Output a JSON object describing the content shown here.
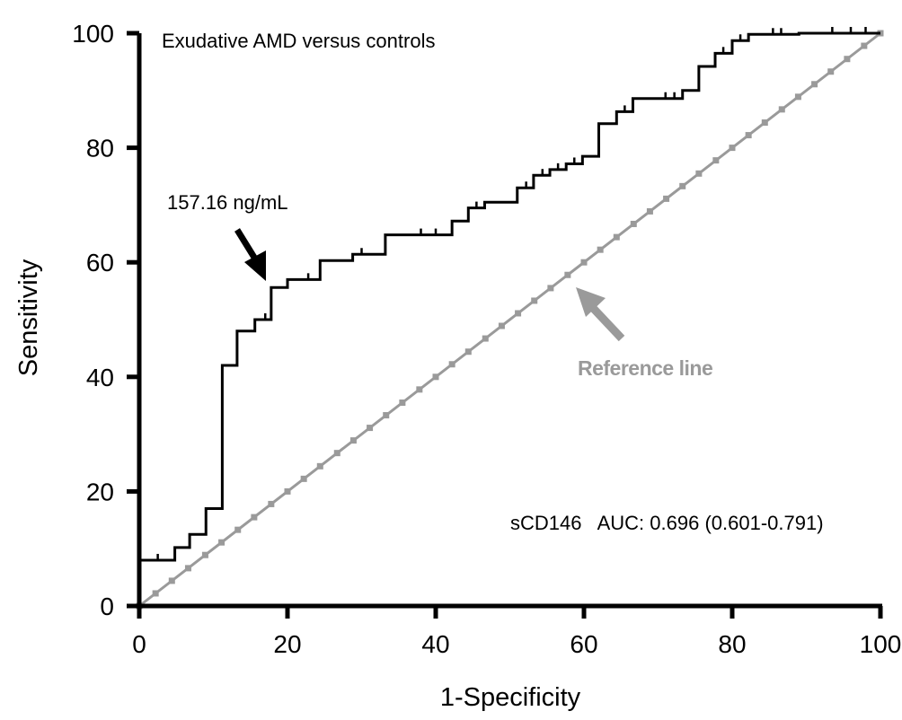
{
  "chart_data": {
    "type": "line",
    "title": "Exudative AMD versus controls",
    "xlabel": "1-Specificity",
    "ylabel": "Sensitivity",
    "xlim": [
      0,
      100
    ],
    "ylim": [
      0,
      100
    ],
    "xticks": [
      "0",
      "20",
      "40",
      "60",
      "80",
      "100"
    ],
    "yticks": [
      "0",
      "20",
      "40",
      "60",
      "80",
      "100"
    ],
    "grid": false,
    "colors": {
      "roc": "#000000",
      "reference": "#9a9a9a"
    },
    "series": [
      {
        "name": "sCD146",
        "step": true,
        "x": [
          0,
          0,
          4.8,
          4.8,
          6.8,
          6.8,
          9.0,
          9.0,
          11.2,
          11.2,
          13.2,
          13.2,
          15.6,
          15.6,
          17.8,
          17.8,
          20.0,
          20.0,
          24.4,
          24.4,
          28.8,
          28.8,
          33.2,
          33.2,
          42.2,
          42.2,
          44.4,
          44.4,
          46.6,
          46.6,
          51.0,
          51.0,
          53.2,
          53.2,
          55.4,
          55.4,
          57.6,
          57.6,
          59.8,
          59.8,
          62.0,
          62.0,
          64.4,
          64.4,
          66.6,
          66.6,
          73.3,
          73.3,
          75.5,
          75.5,
          77.7,
          77.7,
          80.0,
          80.0,
          82.2,
          82.2,
          89.0,
          89.0,
          100
        ],
        "y": [
          0,
          8.0,
          8.0,
          10.2,
          10.2,
          12.5,
          12.5,
          17.0,
          17.0,
          42.0,
          42.0,
          48.0,
          48.0,
          50.0,
          50.0,
          55.6,
          55.6,
          57.0,
          57.0,
          60.3,
          60.3,
          61.4,
          61.4,
          64.8,
          64.8,
          67.2,
          67.2,
          69.5,
          69.5,
          70.5,
          70.5,
          73.0,
          73.0,
          75.2,
          75.2,
          76.2,
          76.2,
          77.2,
          77.2,
          78.5,
          78.5,
          84.2,
          84.2,
          86.3,
          86.3,
          88.6,
          88.6,
          90.0,
          90.0,
          94.2,
          94.2,
          96.5,
          96.5,
          98.7,
          98.7,
          99.8,
          99.8,
          100,
          100
        ]
      },
      {
        "name": "Reference line",
        "x": [
          0,
          100
        ],
        "y": [
          0,
          100
        ],
        "markers": [
          0,
          2.2,
          4.4,
          6.6,
          8.9,
          11.1,
          13.3,
          15.5,
          17.8,
          20.0,
          22.2,
          24.4,
          26.7,
          28.9,
          31.1,
          33.3,
          35.5,
          37.8,
          40.0,
          42.2,
          44.4,
          46.7,
          48.9,
          51.1,
          53.3,
          55.5,
          57.8,
          60.0,
          62.2,
          64.4,
          66.7,
          68.9,
          71.1,
          73.3,
          75.5,
          77.8,
          80.0,
          82.2,
          84.4,
          86.7,
          88.9,
          91.1,
          93.3,
          95.5,
          97.8,
          100
        ]
      }
    ],
    "censor_marks": [
      {
        "x": 2.5,
        "y": 8.0
      },
      {
        "x": 17.0,
        "y": 50.0
      },
      {
        "x": 22.8,
        "y": 57.0
      },
      {
        "x": 30.0,
        "y": 61.4
      },
      {
        "x": 38.0,
        "y": 64.8
      },
      {
        "x": 40.0,
        "y": 64.8
      },
      {
        "x": 45.5,
        "y": 69.5
      },
      {
        "x": 52.2,
        "y": 73.0
      },
      {
        "x": 54.4,
        "y": 75.2
      },
      {
        "x": 56.5,
        "y": 76.2
      },
      {
        "x": 58.7,
        "y": 77.2
      },
      {
        "x": 65.5,
        "y": 86.3
      },
      {
        "x": 71.0,
        "y": 88.6
      },
      {
        "x": 72.2,
        "y": 88.6
      },
      {
        "x": 78.8,
        "y": 96.5
      },
      {
        "x": 81.1,
        "y": 98.7
      },
      {
        "x": 85.5,
        "y": 99.8
      },
      {
        "x": 86.6,
        "y": 99.8
      },
      {
        "x": 93.5,
        "y": 100
      },
      {
        "x": 96.0,
        "y": 100
      },
      {
        "x": 98.0,
        "y": 100
      }
    ],
    "annotations": [
      {
        "id": "cutoff",
        "text": "157.16 ng/mL",
        "arrow_to": {
          "x": 17.8,
          "y": 56.0
        }
      },
      {
        "id": "reference",
        "text": "Reference line",
        "arrow_to": {
          "x": 59.0,
          "y": 59.0
        }
      },
      {
        "id": "auc",
        "text": "sCD146   AUC: 0.696 (0.601-0.791)"
      }
    ]
  }
}
